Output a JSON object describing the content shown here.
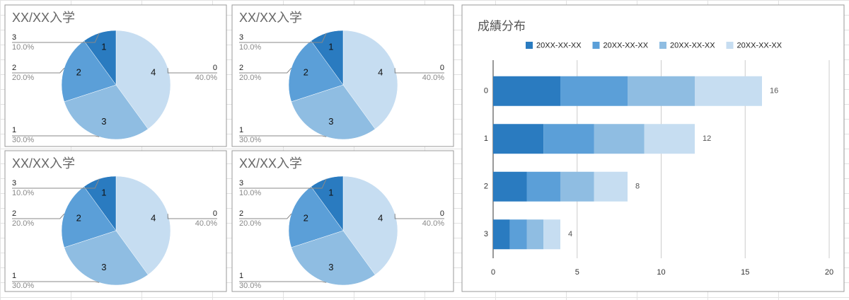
{
  "chart_data": [
    {
      "type": "pie",
      "title": "XX/XX入学",
      "categories": [
        "0",
        "1",
        "2",
        "3"
      ],
      "values": [
        4,
        3,
        2,
        1
      ],
      "percent_labels": [
        "40.0%",
        "30.0%",
        "20.0%",
        "10.0%"
      ],
      "colors": [
        "#c6ddf1",
        "#8fbde2",
        "#5b9fd8",
        "#2a7bc0"
      ]
    },
    {
      "type": "pie",
      "title": "XX/XX入学",
      "categories": [
        "0",
        "1",
        "2",
        "3"
      ],
      "values": [
        4,
        3,
        2,
        1
      ],
      "percent_labels": [
        "40.0%",
        "30.0%",
        "20.0%",
        "10.0%"
      ],
      "colors": [
        "#c6ddf1",
        "#8fbde2",
        "#5b9fd8",
        "#2a7bc0"
      ]
    },
    {
      "type": "pie",
      "title": "XX/XX入学",
      "categories": [
        "0",
        "1",
        "2",
        "3"
      ],
      "values": [
        4,
        3,
        2,
        1
      ],
      "percent_labels": [
        "40.0%",
        "30.0%",
        "20.0%",
        "10.0%"
      ],
      "colors": [
        "#c6ddf1",
        "#8fbde2",
        "#5b9fd8",
        "#2a7bc0"
      ]
    },
    {
      "type": "pie",
      "title": "XX/XX入学",
      "categories": [
        "0",
        "1",
        "2",
        "3"
      ],
      "values": [
        4,
        3,
        2,
        1
      ],
      "percent_labels": [
        "40.0%",
        "30.0%",
        "20.0%",
        "10.0%"
      ],
      "colors": [
        "#c6ddf1",
        "#8fbde2",
        "#5b9fd8",
        "#2a7bc0"
      ]
    },
    {
      "type": "stacked-bar",
      "title": "成績分布",
      "orientation": "horizontal",
      "categories": [
        "0",
        "1",
        "2",
        "3"
      ],
      "series": [
        {
          "name": "20XX-XX-XX",
          "color": "#2a7bc0",
          "values": [
            4,
            3,
            2,
            1
          ]
        },
        {
          "name": "20XX-XX-XX",
          "color": "#5b9fd8",
          "values": [
            4,
            3,
            2,
            1
          ]
        },
        {
          "name": "20XX-XX-XX",
          "color": "#8fbde2",
          "values": [
            4,
            3,
            2,
            1
          ]
        },
        {
          "name": "20XX-XX-XX",
          "color": "#c6ddf1",
          "values": [
            4,
            3,
            2,
            1
          ]
        }
      ],
      "totals": [
        16,
        12,
        8,
        4
      ],
      "xlim": [
        0,
        20
      ],
      "xticks": [
        0,
        5,
        10,
        15,
        20
      ],
      "grid": true,
      "legend": "top"
    }
  ]
}
